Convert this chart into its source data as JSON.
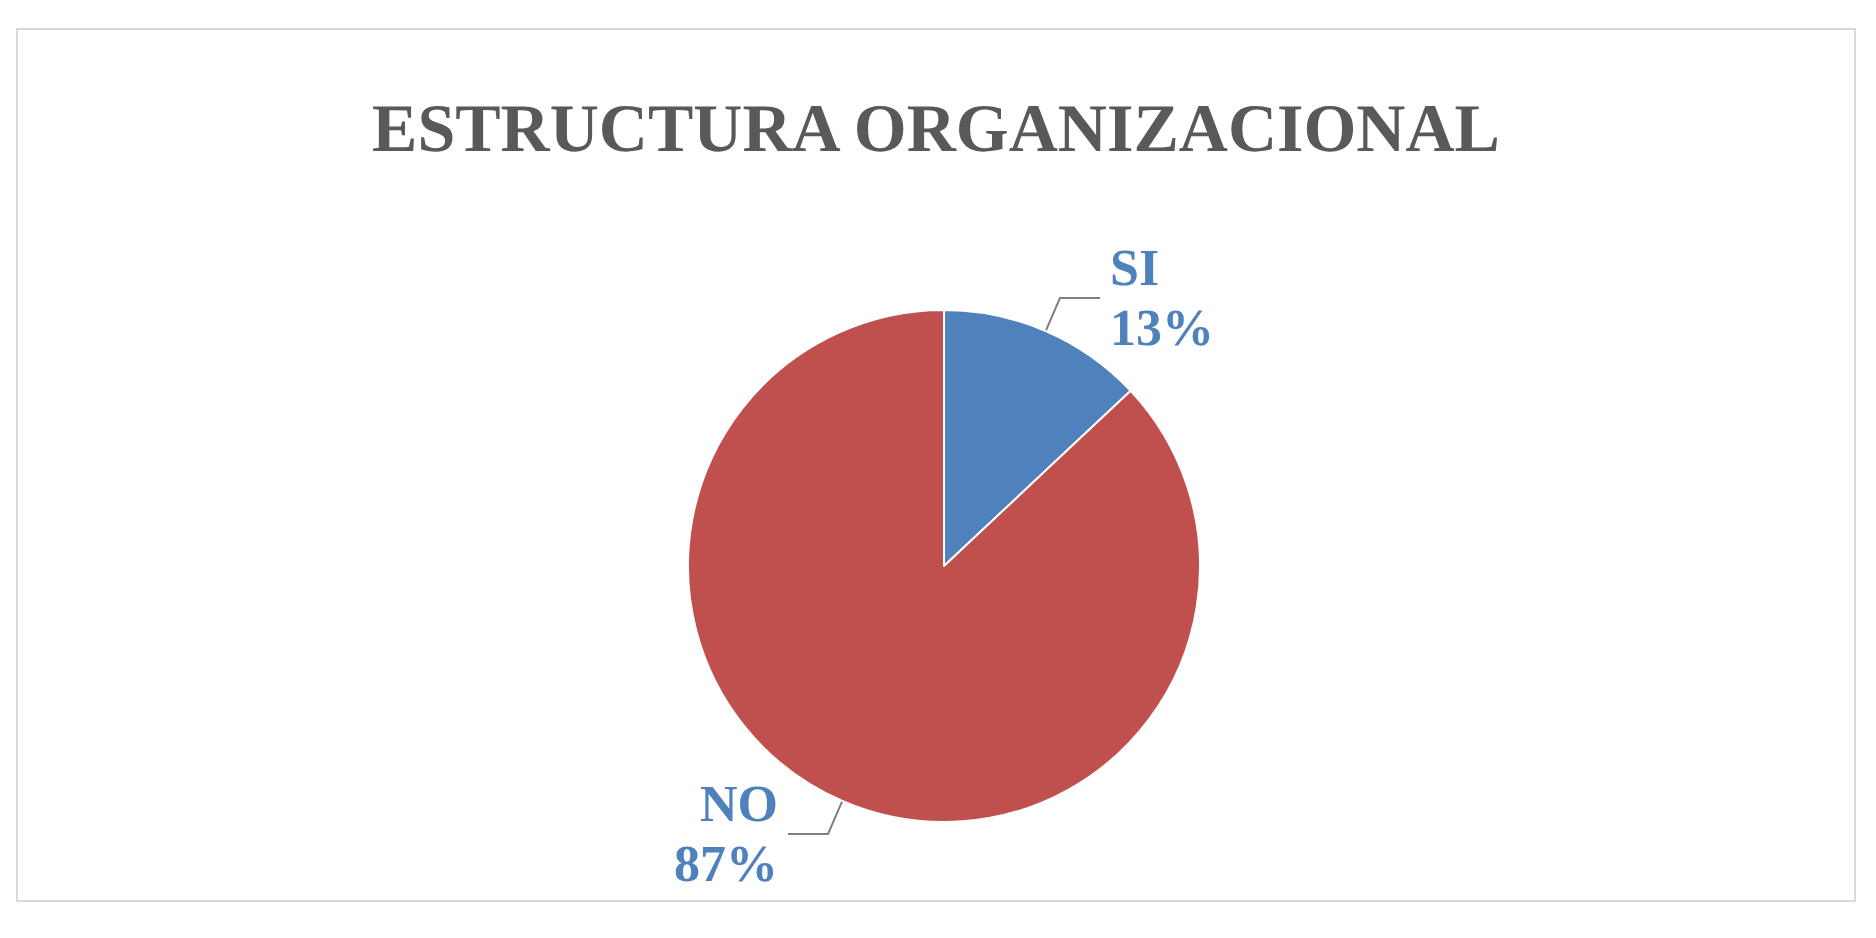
{
  "chart_data": {
    "type": "pie",
    "title": "ESTRUCTURA ORGANIZACIONAL",
    "categories": [
      "SI",
      "NO"
    ],
    "values": [
      13,
      87
    ],
    "colors": [
      "#4f81bd",
      "#c0504d"
    ],
    "value_labels": [
      "13%",
      "87%"
    ]
  }
}
